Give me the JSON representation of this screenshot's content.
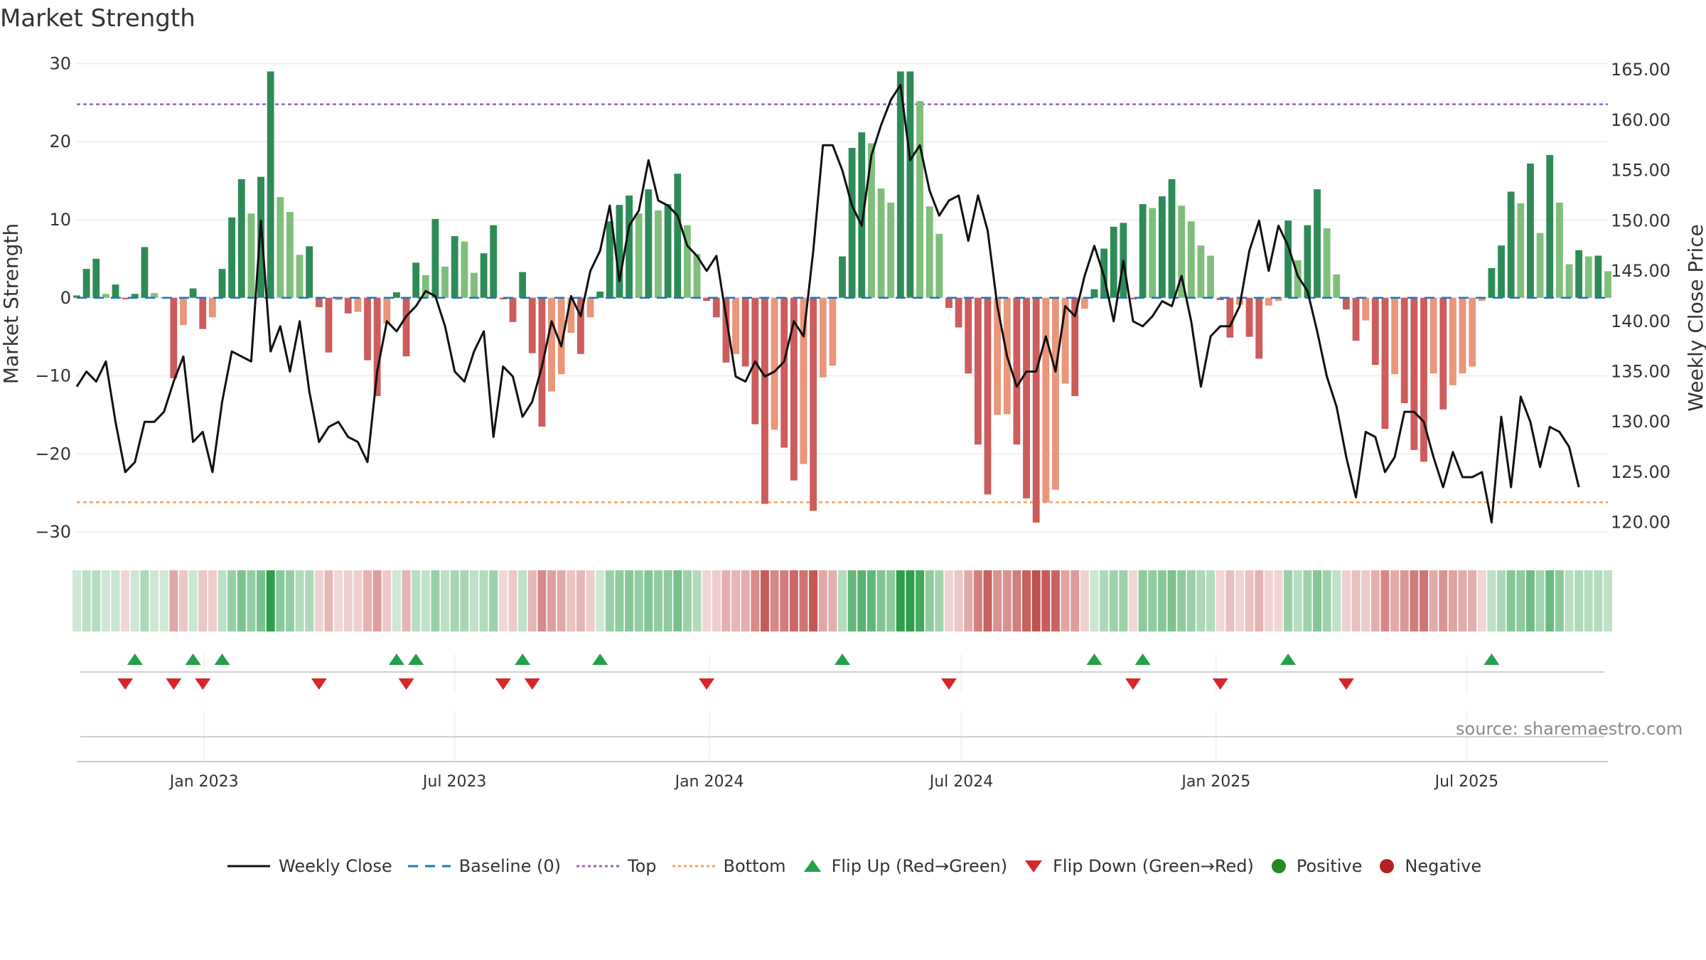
{
  "title": "Market Strength",
  "source": "source: sharemaestro.com",
  "colors": {
    "strong_green": "#2e8b57",
    "light_green": "#7fbf7b",
    "strong_red": "#cd5c5c",
    "light_red": "#e9967a",
    "line": "#111111",
    "top": "#9467bd",
    "bottom": "#f4a460",
    "baseline": "#1f77b4",
    "flip_up": "#22a04a",
    "flip_down": "#d62728",
    "positive": "#228b22",
    "negative": "#b22222"
  },
  "legend": [
    {
      "key": "weekly_close",
      "label": "Weekly Close",
      "icon": "solid-line-icon"
    },
    {
      "key": "baseline",
      "label": "Baseline (0)",
      "icon": "dashed-line-icon"
    },
    {
      "key": "top",
      "label": "Top",
      "icon": "dotted-line-icon"
    },
    {
      "key": "bottom",
      "label": "Bottom",
      "icon": "dotted-line-icon"
    },
    {
      "key": "flip_up",
      "label": "Flip Up (Red→Green)",
      "icon": "triangle-up-icon"
    },
    {
      "key": "flip_down",
      "label": "Flip Down (Green→Red)",
      "icon": "triangle-down-icon"
    },
    {
      "key": "positive",
      "label": "Positive",
      "icon": "circle-icon"
    },
    {
      "key": "negative",
      "label": "Negative",
      "icon": "circle-icon"
    }
  ],
  "chart_data": {
    "type": "bar",
    "title": "Market Strength",
    "x_start": "2022-10-01",
    "x_step_days": 7,
    "x_ticks": [
      "Jan 2023",
      "Jul 2023",
      "Jan 2024",
      "Jul 2024",
      "Jan 2025",
      "Jul 2025"
    ],
    "x_tick_dates": [
      "2023-01-01",
      "2023-07-01",
      "2024-01-01",
      "2024-07-01",
      "2025-01-01",
      "2025-07-01"
    ],
    "ylabel": "Market Strength",
    "ylim": [
      -32,
      30.5
    ],
    "y_ticks": [
      30,
      20,
      10,
      0,
      -10,
      -20,
      -30
    ],
    "y_tick_labels": [
      "30",
      "20",
      "10",
      "0",
      "−10",
      "−20",
      "−30"
    ],
    "y2label": "Weekly Close Price",
    "y2lim": [
      117.5,
      166
    ],
    "y2_ticks": [
      165,
      160,
      155,
      150,
      145,
      140,
      135,
      130,
      125,
      120
    ],
    "y2_tick_labels": [
      "165.00",
      "160.00",
      "155.00",
      "150.00",
      "145.00",
      "140.00",
      "135.00",
      "130.00",
      "125.00",
      "120.00"
    ],
    "top_level": 24.8,
    "bottom_level": -26.2,
    "baseline": 0,
    "strength": [
      0.3,
      3.7,
      5,
      0.5,
      1.7,
      -0.2,
      0.5,
      6.5,
      0.6,
      0,
      -10.3,
      -3.5,
      1.2,
      -4,
      -2.5,
      3.7,
      10.3,
      15.2,
      10.8,
      15.5,
      29,
      12.9,
      11,
      5.5,
      6.6,
      -1.2,
      -7,
      -0.3,
      -2,
      -1.8,
      -8,
      -12.6,
      -3.3,
      0.7,
      -7.5,
      4.5,
      2.9,
      10.1,
      4,
      7.9,
      7.2,
      3.2,
      5.7,
      9.3,
      -0.2,
      -3.1,
      3.3,
      -7.1,
      -16.5,
      -12,
      -9.8,
      -4.5,
      -7.2,
      -2.5,
      0.8,
      9.8,
      11.9,
      13.1,
      10.8,
      13.9,
      11.2,
      12,
      15.9,
      9.3,
      5.6,
      -0.4,
      -2.5,
      -8.3,
      -7.2,
      -8.8,
      -16.2,
      -26.4,
      -16.9,
      -19.2,
      -23.4,
      -21.3,
      -27.3,
      -10.2,
      -8.7,
      5.3,
      19.2,
      21.2,
      19.8,
      14,
      12.2,
      29,
      29,
      25.2,
      11.7,
      8.2,
      -1.3,
      -3.8,
      -9.7,
      -18.8,
      -25.2,
      -15,
      -14.9,
      -18.8,
      -25.7,
      -28.8,
      -26.2,
      -24.6,
      -11,
      -12.6,
      -1.4,
      1.1,
      6.3,
      9.1,
      9.6,
      -0.2,
      12,
      11.5,
      13,
      15.2,
      11.8,
      9.8,
      6.7,
      5.4,
      -0.3,
      -5.1,
      -0.9,
      -5,
      -7.8,
      -1,
      -0.4,
      9.9,
      4.8,
      9.3,
      13.9,
      8.9,
      3,
      -1.5,
      -5.5,
      -2.9,
      -8.6,
      -16.8,
      -9.8,
      -13.5,
      -19.5,
      -21,
      -9.7,
      -14.3,
      -11.2,
      -9.7,
      -8.8,
      -0.4,
      3.8,
      6.7,
      13.6,
      12.1,
      17.2,
      8.3,
      18.3,
      12.2,
      4.3,
      6.1,
      5.3,
      5.4,
      3.4
    ],
    "weekly_close": [
      133.5,
      135,
      134,
      136,
      130,
      125,
      126,
      130,
      130,
      131,
      134,
      136.5,
      128,
      129,
      125,
      132,
      137,
      136.5,
      136,
      150,
      137,
      139.5,
      135,
      140,
      133,
      128,
      129.5,
      130,
      128.5,
      128,
      126,
      135,
      140,
      139,
      140.5,
      141.5,
      143,
      142.5,
      139.5,
      135,
      134,
      137,
      139,
      128.5,
      135.5,
      134.5,
      130.5,
      132,
      135.5,
      140,
      137.5,
      142.5,
      140.5,
      145,
      147,
      151.5,
      144,
      149.5,
      151,
      156,
      152,
      151.5,
      150.5,
      147.5,
      146.5,
      145,
      146.5,
      140.5,
      134.5,
      134,
      136,
      134.5,
      135,
      136,
      140,
      138.5,
      147,
      157.5,
      157.5,
      155,
      151.5,
      149.5,
      156.5,
      159.5,
      162,
      163.5,
      156,
      157.5,
      153,
      150.5,
      152,
      152.5,
      148,
      152.5,
      149,
      141.5,
      136.5,
      133.5,
      135,
      135,
      138.5,
      135,
      141.5,
      140.5,
      144.5,
      147.5,
      144.5,
      140,
      146,
      140,
      139.5,
      140.5,
      142,
      141.5,
      144.5,
      140,
      133.5,
      138.5,
      139.5,
      139.5,
      141.5,
      147,
      150,
      145,
      149.5,
      147.5,
      144.5,
      143,
      139,
      134.5,
      131.5,
      126.5,
      122.5,
      129,
      128.5,
      125,
      126.5,
      131,
      131,
      130,
      126.5,
      123.5,
      127,
      124.5,
      124.5,
      125,
      120,
      130.5,
      123.5,
      132.5,
      130,
      125.5,
      129.5,
      129,
      127.5,
      123.5
    ]
  }
}
